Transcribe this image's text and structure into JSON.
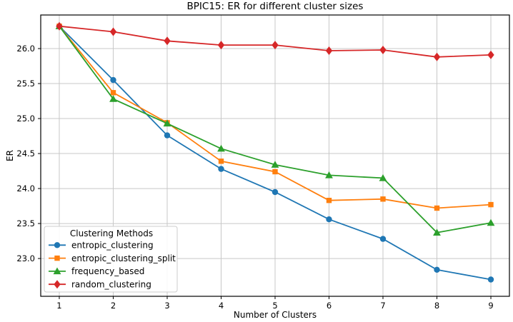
{
  "chart_data": {
    "type": "line",
    "title": "BPIC15: ER for different cluster sizes",
    "xlabel": "Number of Clusters",
    "ylabel": "ER",
    "x": [
      1,
      2,
      3,
      4,
      5,
      6,
      7,
      8,
      9
    ],
    "xticks": [
      1,
      2,
      3,
      4,
      5,
      6,
      7,
      8,
      9
    ],
    "yticks": [
      23.0,
      23.5,
      24.0,
      24.5,
      25.0,
      25.5,
      26.0
    ],
    "xlim": [
      0.656,
      9.344
    ],
    "ylim": [
      22.46,
      26.48
    ],
    "grid": true,
    "legend": {
      "title": "Clustering Methods",
      "position": "lower-left"
    },
    "series": [
      {
        "name": "entropic_clustering",
        "color": "#1f77b4",
        "marker": "circle",
        "values": [
          26.32,
          25.55,
          24.76,
          24.28,
          23.95,
          23.56,
          23.28,
          22.84,
          22.7
        ]
      },
      {
        "name": "entropic_clustering_split",
        "color": "#ff7f0e",
        "marker": "square",
        "values": [
          26.32,
          25.37,
          24.94,
          24.39,
          24.24,
          23.83,
          23.85,
          23.72,
          23.77
        ]
      },
      {
        "name": "frequency_based",
        "color": "#2ca02c",
        "marker": "triangle-up",
        "values": [
          26.32,
          25.28,
          24.93,
          24.57,
          24.34,
          24.19,
          24.15,
          23.37,
          23.51
        ]
      },
      {
        "name": "random_clustering",
        "color": "#d62728",
        "marker": "diamond",
        "values": [
          26.32,
          26.24,
          26.11,
          26.05,
          26.05,
          25.97,
          25.98,
          25.88,
          25.91
        ]
      }
    ],
    "style": {
      "grid_color": "#c8c8c8",
      "spine_color": "#000000",
      "text_color": "#000000",
      "legend_border_color": "#cccccc",
      "background": "#ffffff"
    }
  }
}
